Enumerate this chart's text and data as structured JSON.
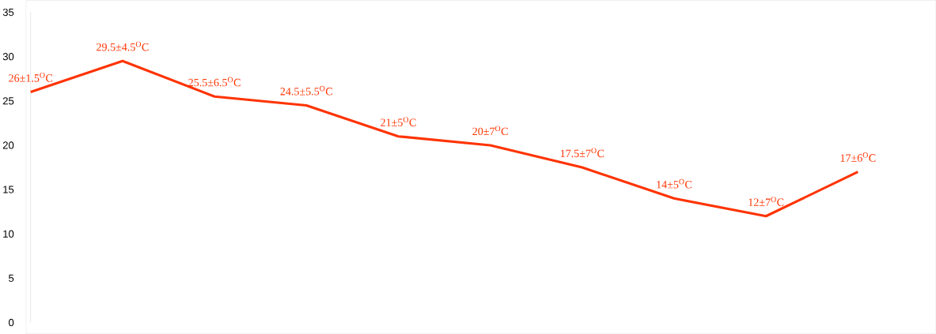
{
  "chart_data": {
    "type": "line",
    "categories": [
      null,
      null,
      null,
      null,
      null,
      null,
      null,
      null,
      null,
      null
    ],
    "series": [
      {
        "color": "#ff3300",
        "values": [
          26,
          29.5,
          25.5,
          24.5,
          21,
          20,
          17.5,
          14,
          12,
          17
        ],
        "value_labels": [
          "26±1.5$^{O}$C",
          "29.5±4.5$^{O}$C",
          "25.5±6.5$^{O}$C",
          "24.5±5.5$^{O}$C",
          "21±5$^{O}$C",
          "20±7$^{O}$C",
          "17.5±7$^{O}$C",
          "14±5$^{O}$C",
          "12±7$^{O}$C",
          "17±6$^{O}$C"
        ]
      }
    ],
    "ylim": [
      0,
      35
    ],
    "yticks": [
      0,
      5,
      10,
      15,
      20,
      25,
      30,
      35
    ],
    "grid": false,
    "marker": "none",
    "line_style": "solid"
  }
}
